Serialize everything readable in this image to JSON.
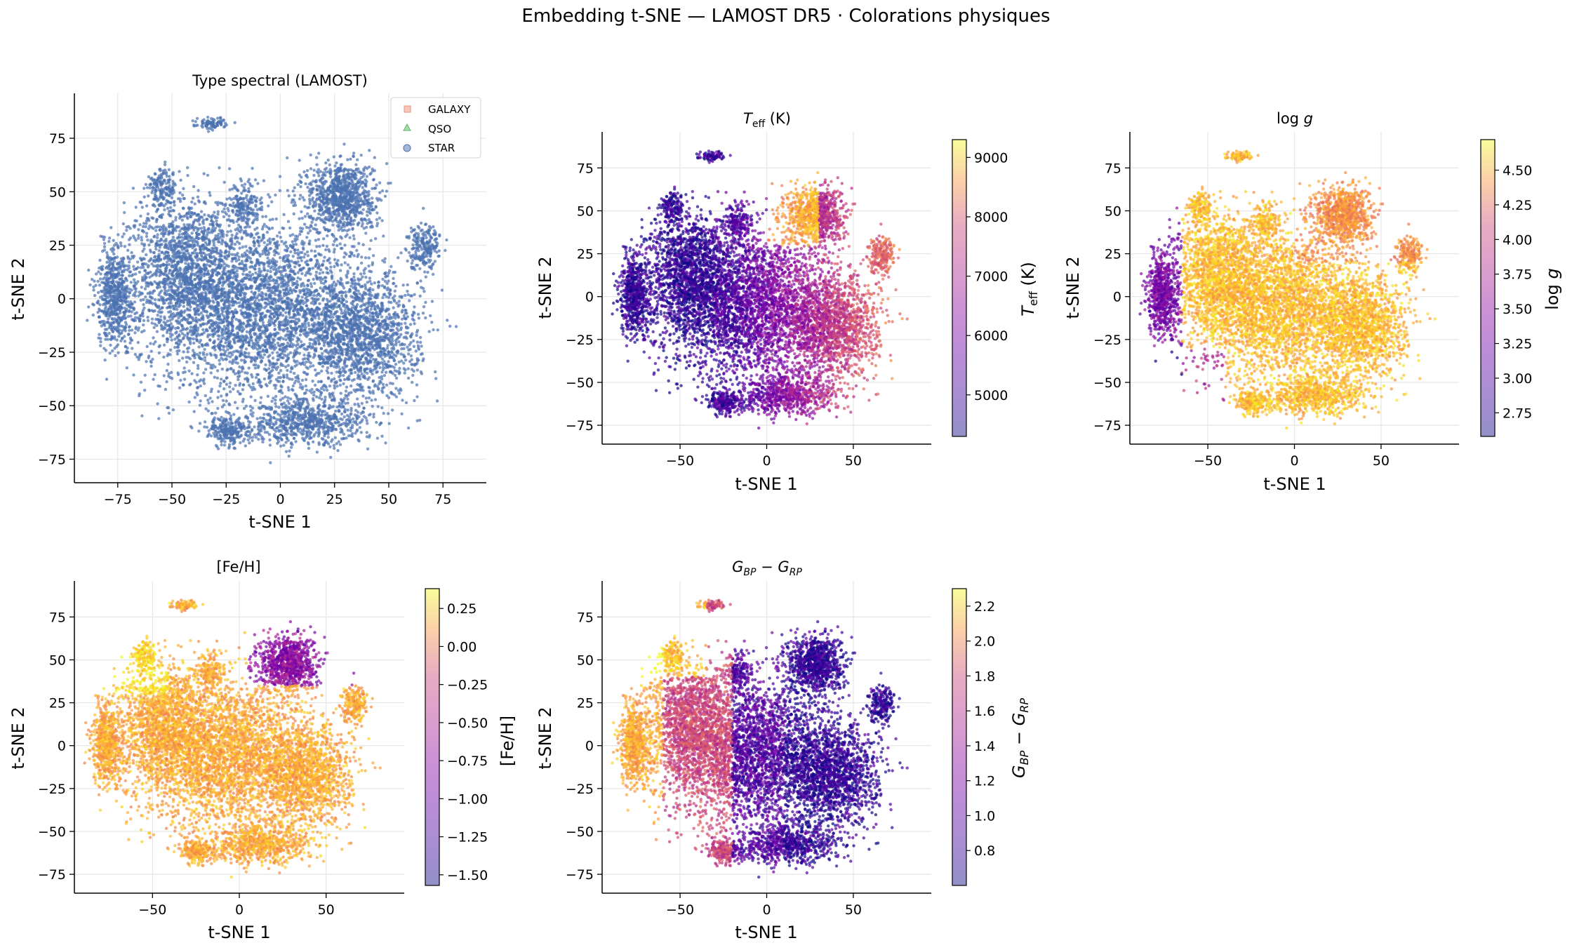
{
  "figure": {
    "suptitle": "Embedding t-SNE — LAMOST DR5 · Colorations physiques"
  },
  "chart_data": [
    {
      "type": "scatter",
      "id": "spectral_type",
      "title": "Type spectral (LAMOST)",
      "xlabel": "t-SNE 1",
      "ylabel": "t-SNE 2",
      "xlim": [
        -95,
        95
      ],
      "ylim": [
        -86,
        96
      ],
      "xticks": [
        -75,
        -50,
        -25,
        0,
        25,
        50,
        75
      ],
      "yticks": [
        -75,
        -50,
        -25,
        0,
        25,
        50,
        75
      ],
      "grid": true,
      "legend_position": "top-right",
      "series": [
        {
          "name": "GALAXY",
          "marker": "square",
          "color": "#e8907a"
        },
        {
          "name": "QSO",
          "marker": "triangle",
          "color": "#5fb45f"
        },
        {
          "name": "STAR",
          "marker": "circle",
          "color": "#4c72b0"
        }
      ],
      "point_color": "#4c72b0"
    },
    {
      "type": "scatter",
      "id": "teff",
      "title": "T_eff (K)",
      "xlabel": "t-SNE 1",
      "ylabel": "t-SNE 2",
      "xlim": [
        -95,
        95
      ],
      "ylim": [
        -86,
        96
      ],
      "xticks": [
        -50,
        0,
        50
      ],
      "yticks": [
        -75,
        -50,
        -25,
        0,
        25,
        50,
        75
      ],
      "grid": true,
      "colormap": "plasma",
      "colorbar": {
        "label": "T_eff (K)",
        "range": [
          4300,
          9300
        ],
        "ticks": [
          5000,
          6000,
          7000,
          8000,
          9000
        ],
        "tick_labels": [
          "5000",
          "6000",
          "7000",
          "8000",
          "9000"
        ]
      }
    },
    {
      "type": "scatter",
      "id": "logg",
      "title": "log g",
      "xlabel": "t-SNE 1",
      "ylabel": "t-SNE 2",
      "xlim": [
        -95,
        95
      ],
      "ylim": [
        -86,
        96
      ],
      "xticks": [
        -50,
        0,
        50
      ],
      "yticks": [
        -75,
        -50,
        -25,
        0,
        25,
        50,
        75
      ],
      "grid": true,
      "colormap": "plasma",
      "colorbar": {
        "label": "log g",
        "range": [
          2.58,
          4.72
        ],
        "ticks": [
          2.75,
          3.0,
          3.25,
          3.5,
          3.75,
          4.0,
          4.25,
          4.5
        ],
        "tick_labels": [
          "2.75",
          "3.00",
          "3.25",
          "3.50",
          "3.75",
          "4.00",
          "4.25",
          "4.50"
        ]
      }
    },
    {
      "type": "scatter",
      "id": "feh",
      "title": "[Fe/H]",
      "xlabel": "t-SNE 1",
      "ylabel": "t-SNE 2",
      "xlim": [
        -95,
        95
      ],
      "ylim": [
        -86,
        96
      ],
      "xticks": [
        -50,
        0,
        50
      ],
      "yticks": [
        -75,
        -50,
        -25,
        0,
        25,
        50,
        75
      ],
      "grid": true,
      "colormap": "plasma",
      "colorbar": {
        "label": "[Fe/H]",
        "range": [
          -1.57,
          0.38
        ],
        "ticks": [
          -1.5,
          -1.25,
          -1.0,
          -0.75,
          -0.5,
          -0.25,
          0.0,
          0.25
        ],
        "tick_labels": [
          "−1.50",
          "−1.25",
          "−1.00",
          "−0.75",
          "−0.50",
          "−0.25",
          "0.00",
          "0.25"
        ]
      }
    },
    {
      "type": "scatter",
      "id": "bprp",
      "title": "G_BP − G_RP",
      "xlabel": "t-SNE 1",
      "ylabel": "t-SNE 2",
      "xlim": [
        -95,
        95
      ],
      "ylim": [
        -86,
        96
      ],
      "xticks": [
        -50,
        0,
        50
      ],
      "yticks": [
        -75,
        -50,
        -25,
        0,
        25,
        50,
        75
      ],
      "grid": true,
      "colormap": "plasma",
      "colorbar": {
        "label": "G_BP − G_RP",
        "range": [
          0.6,
          2.3
        ],
        "ticks": [
          0.8,
          1.0,
          1.2,
          1.4,
          1.6,
          1.8,
          2.0,
          2.2
        ],
        "tick_labels": [
          "0.8",
          "1.0",
          "1.2",
          "1.4",
          "1.6",
          "1.8",
          "2.0",
          "2.2"
        ]
      }
    }
  ],
  "colors": {
    "star_blue": "#4c72b0",
    "grid": "#e6e6e6",
    "axis": "#000000"
  }
}
